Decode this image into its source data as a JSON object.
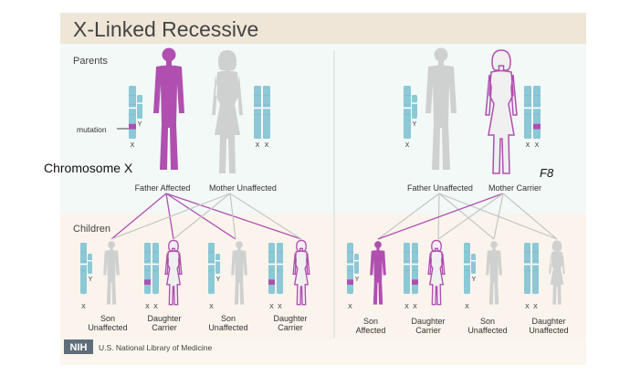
{
  "title": "X-Linked Recessive",
  "parents_label": "Parents",
  "children_label": "Children",
  "mutation_label": "mutation",
  "chromosome_x_label": "Chromosome X",
  "gene_label": "F8",
  "chrom_x": "X",
  "chrom_y": "Y",
  "left": {
    "father": "Father Affected",
    "mother": "Mother Unaffected",
    "children": [
      {
        "line1": "Son",
        "line2": "Unaffected"
      },
      {
        "line1": "Daughter",
        "line2": "Carrier"
      },
      {
        "line1": "Son",
        "line2": "Unaffected"
      },
      {
        "line1": "Daughter",
        "line2": "Carrier"
      }
    ]
  },
  "right": {
    "father": "Father Unaffected",
    "mother": "Mother Carrier",
    "children": [
      {
        "line1": "Son",
        "line2": "Affected"
      },
      {
        "line1": "Daughter",
        "line2": "Carrier"
      },
      {
        "line1": "Son",
        "line2": "Unaffected"
      },
      {
        "line1": "Daughter",
        "line2": "Unaffected"
      }
    ]
  },
  "footer": {
    "logo": "NIH",
    "org": "U.S. National Library of Medicine"
  },
  "colors": {
    "affected": "#b04fb0",
    "unaffected": "#cfd0d0",
    "chromosome": "#8cc8d6",
    "mutation": "#b04fb0"
  }
}
